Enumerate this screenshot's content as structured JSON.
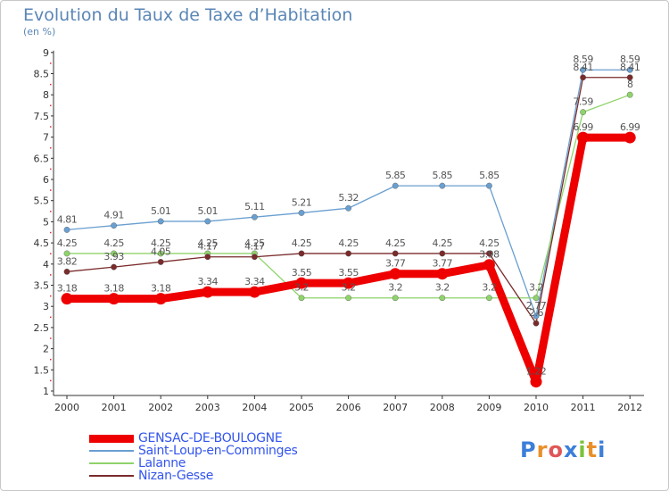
{
  "header": {
    "title": "Evolution du Taux de Taxe d’Habitation",
    "unit": "(en %)"
  },
  "logo": {
    "text": "Proxiti",
    "letters": [
      "P",
      "r",
      "o",
      "x",
      "i",
      "t",
      "i"
    ]
  },
  "chart_data": {
    "type": "line",
    "title": "Evolution du Taux de Taxe d’Habitation",
    "ylabel": "(en %)",
    "xlabel": "",
    "ylim": [
      1,
      9
    ],
    "grid": false,
    "legend_position": "bottom-left",
    "categories": [
      "2000",
      "2001",
      "2002",
      "2003",
      "2004",
      "2005",
      "2006",
      "2007",
      "2008",
      "2009",
      "2010",
      "2011",
      "2012"
    ],
    "yticks": [
      "1",
      "1.5",
      "2",
      "2.5",
      "3",
      "3.5",
      "4",
      "4.5",
      "5",
      "5.5",
      "6",
      "6.5",
      "7",
      "7.5",
      "8",
      "8.5",
      "9"
    ],
    "series": [
      {
        "name": "GENSAC-DE-BOULOGNE",
        "color": "#ee0000",
        "emphasis": "thick",
        "values": [
          3.18,
          3.18,
          3.18,
          3.34,
          3.34,
          3.55,
          3.55,
          3.77,
          3.77,
          3.98,
          1.22,
          6.99,
          6.99
        ],
        "labels": [
          "3.18",
          "3.18",
          "3.18",
          "3.34",
          "3.34",
          "3.55",
          "3.55",
          "3.77",
          "3.77",
          "3.98",
          "1.22",
          "6.99",
          "6.99"
        ]
      },
      {
        "name": "Saint-Loup-en-Comminges",
        "color": "#6a9fd0",
        "values": [
          4.81,
          4.91,
          5.01,
          5.01,
          5.11,
          5.21,
          5.32,
          5.85,
          5.85,
          5.85,
          2.77,
          8.59,
          8.59
        ],
        "labels": [
          "4.81",
          "4.91",
          "5.01",
          "5.01",
          "5.11",
          "5.21",
          "5.32",
          "5.85",
          "5.85",
          "5.85",
          "2.77",
          "8.59",
          "8.59"
        ]
      },
      {
        "name": "Lalanne",
        "color": "#8fd36b",
        "values": [
          4.25,
          4.25,
          4.25,
          4.25,
          4.25,
          3.2,
          3.2,
          3.2,
          3.2,
          3.2,
          3.2,
          7.59,
          8.0
        ],
        "labels": [
          "4.25",
          "4.25",
          "4.25",
          "4.25",
          "4.25",
          "3.2",
          "3.2",
          "3.2",
          "3.2",
          "3.2",
          "3.2",
          "7.59",
          "8"
        ]
      },
      {
        "name": "Nizan-Gesse",
        "color": "#7a2b2b",
        "values": [
          3.82,
          3.93,
          4.05,
          4.17,
          4.17,
          4.25,
          4.25,
          4.25,
          4.25,
          4.25,
          2.6,
          8.41,
          8.41
        ],
        "labels": [
          "3.82",
          "3.93",
          "4.05",
          "4.17",
          "4.17",
          "4.25",
          "4.25",
          "4.25",
          "4.25",
          "4.25",
          "2.6",
          "8.41",
          "8.41"
        ]
      }
    ]
  }
}
